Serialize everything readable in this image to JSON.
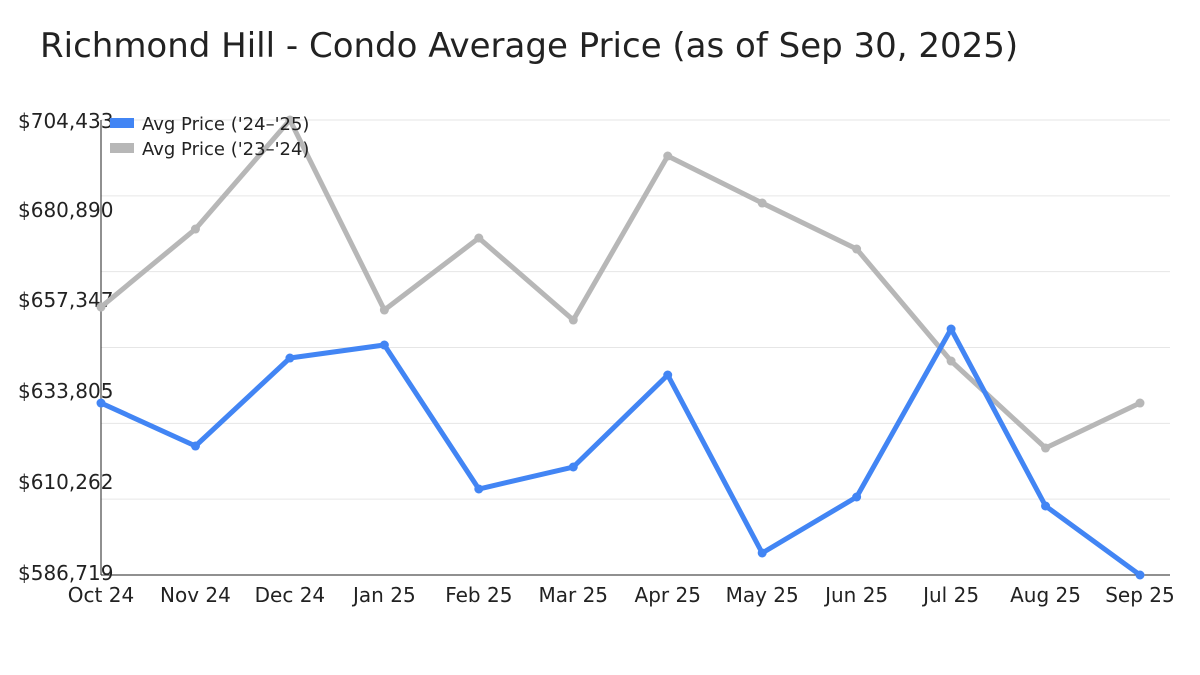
{
  "chart_data": {
    "type": "line",
    "title": "Richmond Hill - Condo Average Price (as of Sep 30, 2025)",
    "xlabel": "",
    "ylabel": "",
    "categories": [
      "Oct 24",
      "Nov 24",
      "Dec 24",
      "Jan 25",
      "Feb 25",
      "Mar 25",
      "Apr 25",
      "May 25",
      "Jun 25",
      "Jul 25",
      "Aug 25",
      "Sep 25"
    ],
    "y_ticks": [
      "$586,719",
      "$610,262",
      "$633,805",
      "$657,347",
      "$680,890",
      "$704,433"
    ],
    "ylim": [
      586719,
      704433
    ],
    "grid": true,
    "legend_position": "top-left",
    "series": [
      {
        "name": "Avg Price ('24–'25)",
        "color": "#4285f4",
        "values": [
          631216,
          620091,
          642857,
          646220,
          608967,
          614659,
          638459,
          592410,
          606898,
          650359,
          604569,
          586719
        ]
      },
      {
        "name": "Avg Price ('23–'24)",
        "color": "#b7b7b7",
        "values": [
          656051,
          676229,
          704433,
          655275,
          673901,
          652688,
          695114,
          682955,
          671055,
          642081,
          619574,
          631216
        ]
      }
    ]
  }
}
